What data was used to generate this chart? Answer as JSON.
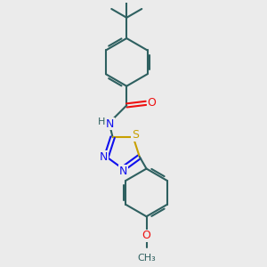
{
  "bg_color": "#ebebeb",
  "bond_color": "#2e6060",
  "bond_width": 1.5,
  "atom_colors": {
    "N": "#1010ee",
    "S": "#c8a000",
    "O": "#ee1010",
    "C": "#2e6060"
  },
  "font_size": 9
}
